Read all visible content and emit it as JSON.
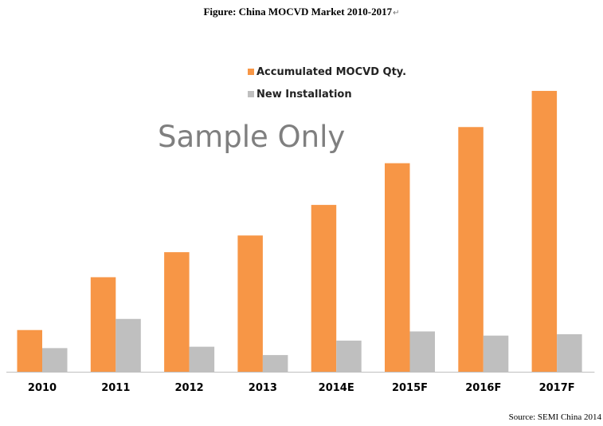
{
  "figure_title": "Figure: China MOCVD  Market 2010-2017",
  "return_glyph": "↵",
  "watermark": "Sample Only",
  "source": "Source: SEMI China 2014",
  "colors": {
    "accumulated": "#F79646",
    "new": "#BFBFBF",
    "axis": "#BFBFBF",
    "text": "#000000"
  },
  "chart_data": {
    "type": "bar",
    "title": "Figure: China MOCVD  Market 2010-2017",
    "categories": [
      "2010",
      "2011",
      "2012",
      "2013",
      "2014E",
      "2015F",
      "2016F",
      "2017F"
    ],
    "series": [
      {
        "name": "Accumulated MOCVD Qty.",
        "values": [
          15,
          34,
          43,
          49,
          60,
          75,
          88,
          101
        ]
      },
      {
        "name": "New Installation",
        "values": [
          8.5,
          19,
          9,
          6,
          11.2,
          14.5,
          13,
          13.5
        ]
      }
    ],
    "ylim": [
      0,
      105
    ],
    "grid": false,
    "legend_position": "top-center"
  }
}
